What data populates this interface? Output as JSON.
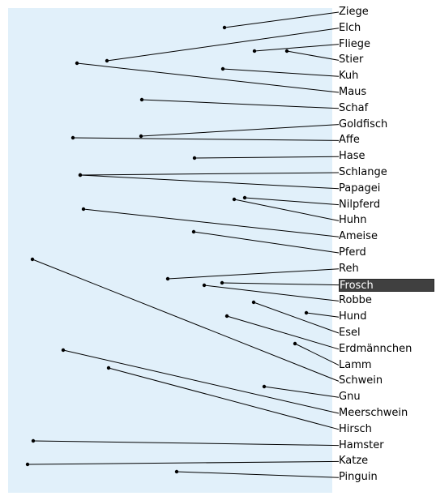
{
  "colors": {
    "panel": "#e1f0fa",
    "line": "#000000",
    "selected_bg": "#404040",
    "selected_text": "#ffffff"
  },
  "selected_label": "Frosch",
  "labels": [
    "Ziege",
    "Elch",
    "Fliege",
    "Stier",
    "Kuh",
    "Maus",
    "Schaf",
    "Goldfisch",
    "Affe",
    "Hase",
    "Schlange",
    "Papagei",
    "Nilpferd",
    "Huhn",
    "Ameise",
    "Pferd",
    "Reh",
    "Frosch",
    "Robbe",
    "Hund",
    "Esel",
    "Erdmännchen",
    "Lamm",
    "Schwein",
    "Gnu",
    "Meerschwein",
    "Hirsch",
    "Hamster",
    "Katze",
    "Pinguin"
  ]
}
